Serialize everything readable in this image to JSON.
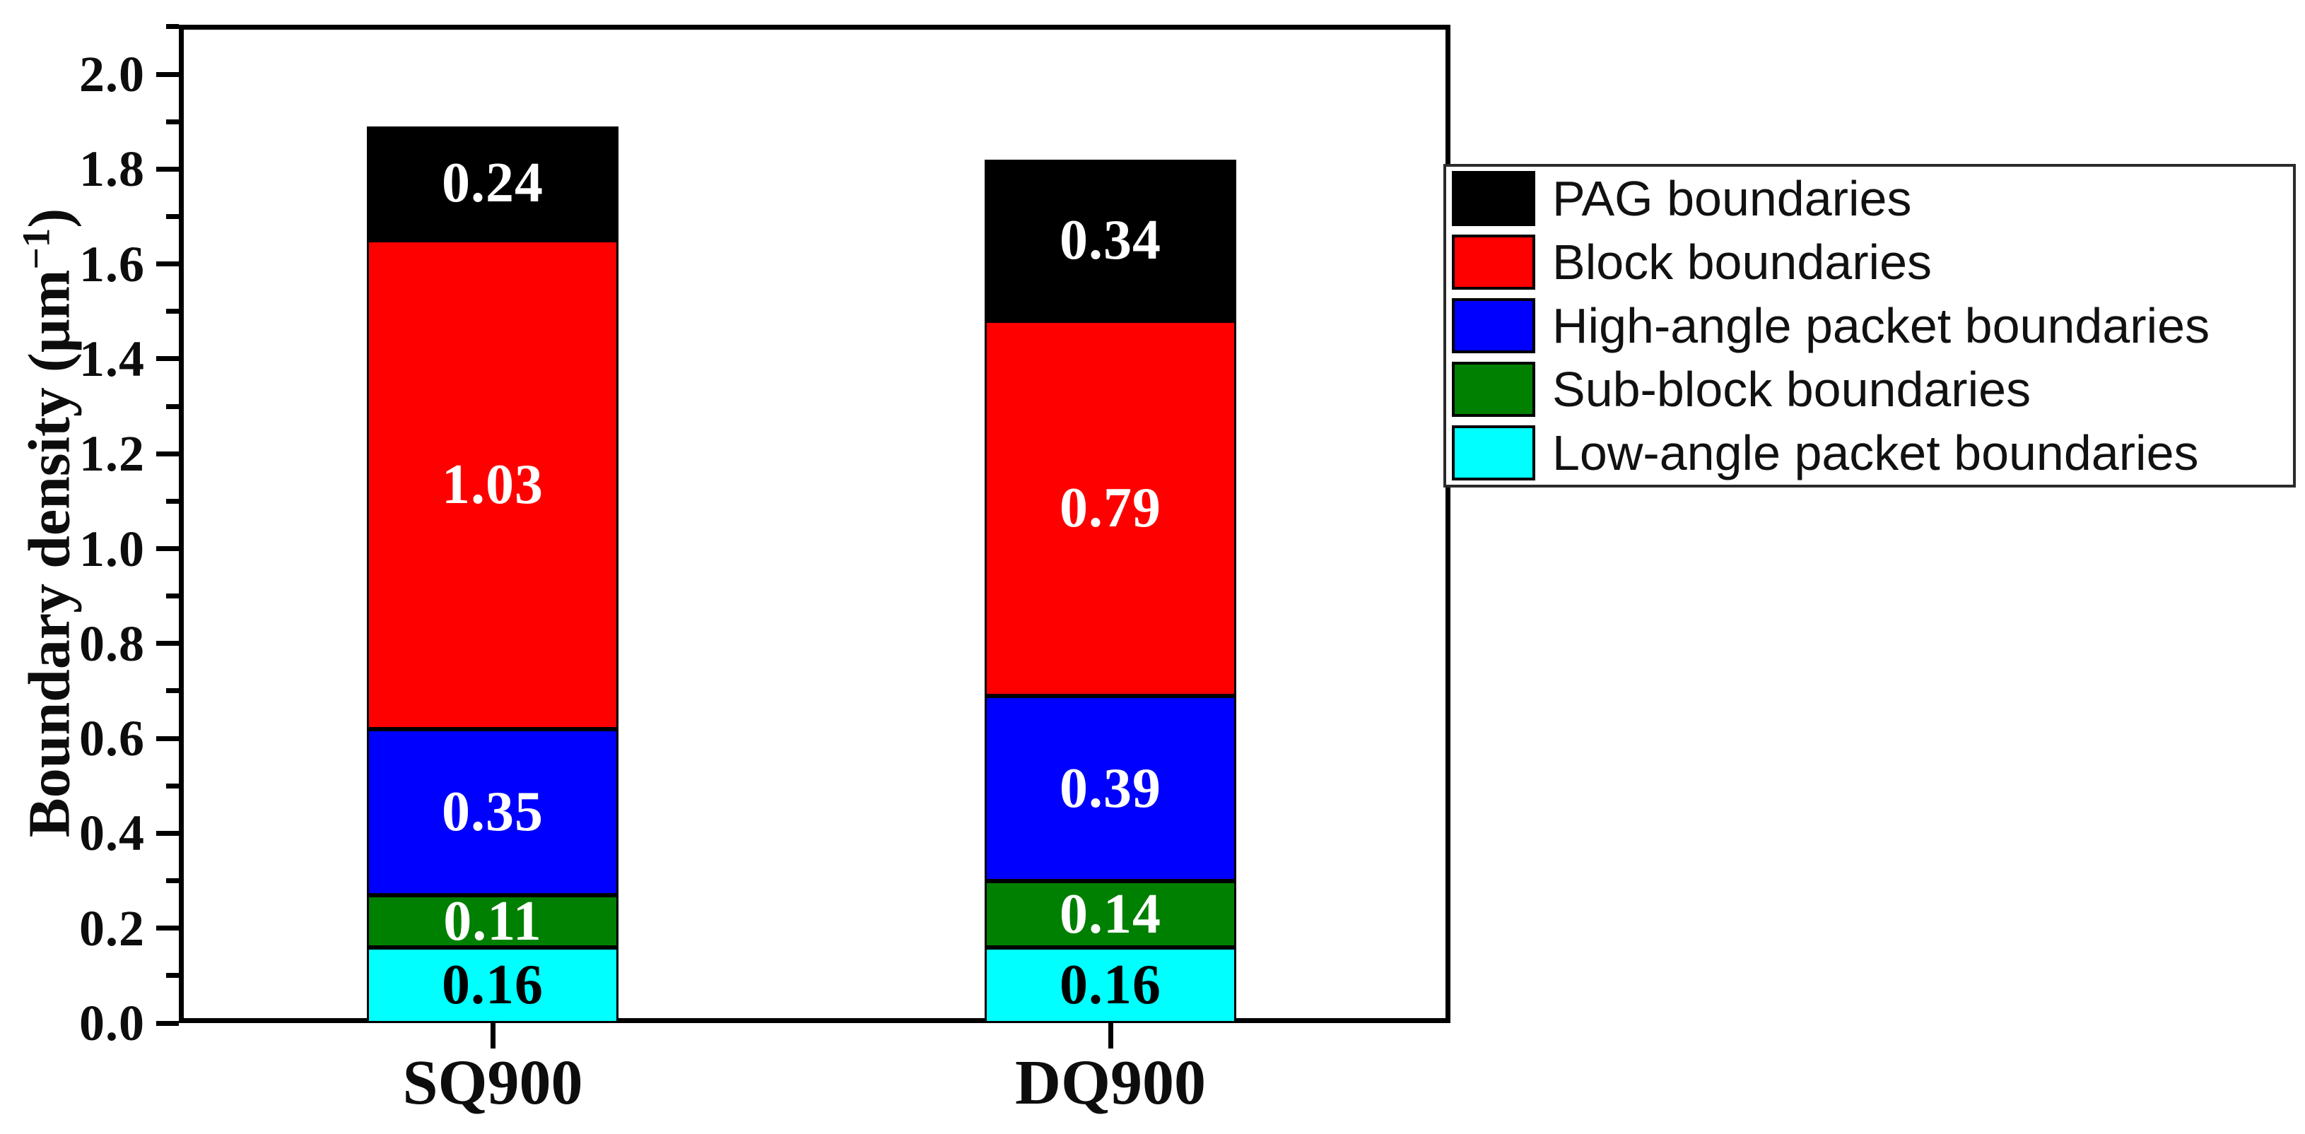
{
  "chart_data": {
    "type": "bar",
    "variant": "stacked-vertical",
    "categories": [
      "SQ900",
      "DQ900"
    ],
    "series": [
      {
        "name": "Low-angle packet boundaries",
        "color": "#00FFFF",
        "text_color": "#000000",
        "values": [
          0.16,
          0.16
        ]
      },
      {
        "name": "Sub-block boundaries",
        "color": "#008000",
        "text_color": "#FFFFFF",
        "values": [
          0.11,
          0.14
        ]
      },
      {
        "name": "High-angle packet boundaries",
        "color": "#0000FF",
        "text_color": "#FFFFFF",
        "values": [
          0.35,
          0.39
        ]
      },
      {
        "name": "Block boundaries",
        "color": "#FF0000",
        "text_color": "#FFFFFF",
        "values": [
          1.03,
          0.79
        ]
      },
      {
        "name": "PAG boundaries",
        "color": "#000000",
        "text_color": "#FFFFFF",
        "values": [
          0.24,
          0.34
        ]
      }
    ],
    "totals": [
      1.89,
      1.82
    ],
    "title": "",
    "xlabel": "",
    "ylabel": "Boundary density (μm⁻¹)",
    "ylabel_parts": {
      "prefix": "Boundary density (μm",
      "sup": "−1",
      "suffix": ")"
    },
    "ylim": [
      0,
      2.1
    ],
    "ytick_labels": [
      "0.0",
      "0.2",
      "0.4",
      "0.6",
      "0.8",
      "1.0",
      "1.2",
      "1.4",
      "1.6",
      "1.8",
      "2.0"
    ],
    "ytick_major_step": 0.2,
    "ytick_minor_step": 0.1,
    "grid": "off",
    "bar_value_labels_decimals": 2,
    "legend_position": "outside-right"
  },
  "legend": {
    "entries": [
      {
        "label": "PAG boundaries",
        "color": "#000000"
      },
      {
        "label": "Block boundaries",
        "color": "#FF0000"
      },
      {
        "label": "High-angle packet boundaries",
        "color": "#0000FF"
      },
      {
        "label": "Sub-block boundaries",
        "color": "#008000"
      },
      {
        "label": "Low-angle packet boundaries",
        "color": "#00FFFF"
      }
    ]
  },
  "colors": {
    "frame": "#000000",
    "background": "#FFFFFF",
    "text": "#0d0d0d"
  }
}
